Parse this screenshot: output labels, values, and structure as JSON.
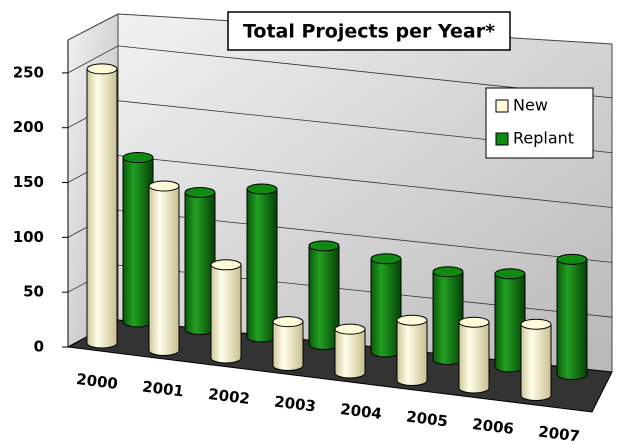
{
  "chart_data": {
    "type": "bar3d",
    "title": "Total Projects per Year*",
    "categories": [
      "2000",
      "2001",
      "2002",
      "2003",
      "2004",
      "2005",
      "2006",
      "2007"
    ],
    "series": [
      {
        "name": "New",
        "color": "#fffbd8",
        "values": [
          250,
          150,
          85,
          40,
          40,
          55,
          60,
          65
        ]
      },
      {
        "name": "Replant",
        "color": "#108a10",
        "values": [
          150,
          125,
          135,
          90,
          85,
          80,
          85,
          105
        ]
      }
    ],
    "ylim": [
      0,
      280
    ],
    "yticks": [
      0,
      50,
      100,
      150,
      200,
      250
    ],
    "grid": true,
    "legend": "upper right"
  }
}
